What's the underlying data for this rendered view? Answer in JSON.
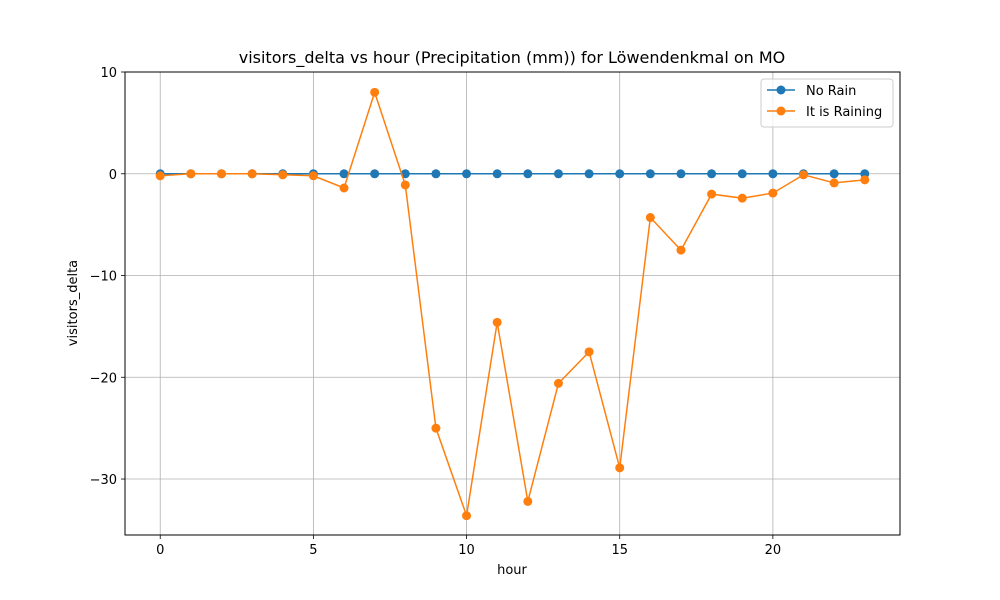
{
  "chart_data": {
    "type": "line",
    "title": "visitors_delta vs hour (Precipitation (mm)) for Löwendenkmal on MO",
    "xlabel": "hour",
    "ylabel": "visitors_delta",
    "xlim": [
      -1.15,
      24.15
    ],
    "ylim": [
      -35.5,
      10
    ],
    "x_ticks": [
      0,
      5,
      10,
      15,
      20
    ],
    "y_ticks": [
      10,
      0,
      -10,
      -20,
      -30
    ],
    "y_tick_labels": [
      "10",
      "0",
      "−10",
      "−20",
      "−30"
    ],
    "grid": true,
    "legend_position": "top-right",
    "x": [
      0,
      1,
      2,
      3,
      4,
      5,
      6,
      7,
      8,
      9,
      10,
      11,
      12,
      13,
      14,
      15,
      16,
      17,
      18,
      19,
      20,
      21,
      22,
      23
    ],
    "series": [
      {
        "name": "No Rain",
        "color": "#1f77b4",
        "values": [
          0,
          0,
          0,
          0,
          0,
          0,
          0,
          0,
          0,
          0,
          0,
          0,
          0,
          0,
          0,
          0,
          0,
          0,
          0,
          0,
          0,
          0,
          0,
          0
        ]
      },
      {
        "name": "It is Raining",
        "color": "#ff7f0e",
        "values": [
          -0.2,
          0,
          0,
          0,
          -0.1,
          -0.2,
          -1.4,
          8,
          -1.1,
          -25,
          -33.6,
          -14.6,
          -32.2,
          -20.6,
          -17.5,
          -28.9,
          -4.3,
          -7.5,
          -2,
          -2.4,
          -1.9,
          -0.1,
          -0.9,
          -0.6
        ]
      }
    ]
  }
}
